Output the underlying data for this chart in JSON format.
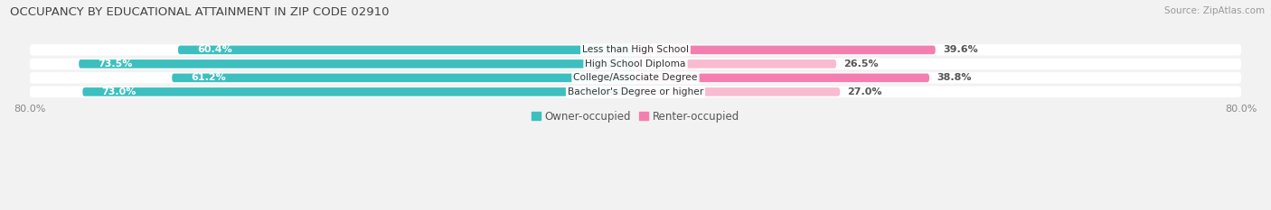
{
  "title": "OCCUPANCY BY EDUCATIONAL ATTAINMENT IN ZIP CODE 02910",
  "source": "Source: ZipAtlas.com",
  "categories": [
    "Less than High School",
    "High School Diploma",
    "College/Associate Degree",
    "Bachelor's Degree or higher"
  ],
  "owner_values": [
    60.4,
    73.5,
    61.2,
    73.0
  ],
  "renter_values": [
    39.6,
    26.5,
    38.8,
    27.0
  ],
  "owner_color": "#3DBFBF",
  "renter_color": "#F47FAF",
  "renter_color_row1": "#F47FAF",
  "renter_color_row2": "#F8BBCF",
  "renter_color_row3": "#F47FAF",
  "renter_color_row4": "#F8BBCF",
  "background_color": "#f2f2f2",
  "bar_bg_color": "#e0e0e0",
  "total_width": 80.0,
  "label_fontsize": 8.0,
  "title_fontsize": 9.5,
  "legend_fontsize": 8.5,
  "source_fontsize": 7.5,
  "owner_label_color": "#ffffff",
  "renter_label_color": "#555555",
  "tick_label_color": "#888888",
  "category_label_color": "#333333",
  "x_axis_label_left": "80.0%",
  "x_axis_label_right": "80.0%"
}
